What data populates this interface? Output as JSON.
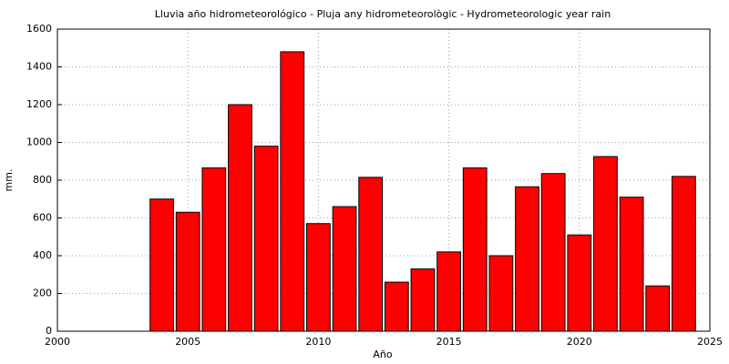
{
  "chart_data": {
    "type": "bar",
    "title": "Lluvia año hidrometeorológico - Pluja any hidrometeorològic - Hydrometeorologic year rain",
    "x_label": "Año",
    "y_label": "mm.",
    "x": [
      2004,
      2005,
      2006,
      2007,
      2008,
      2009,
      2010,
      2011,
      2012,
      2013,
      2014,
      2015,
      2016,
      2017,
      2018,
      2019,
      2020,
      2021,
      2022,
      2023,
      2024
    ],
    "values": [
      700,
      630,
      865,
      1200,
      980,
      1480,
      570,
      660,
      815,
      260,
      330,
      420,
      865,
      400,
      765,
      835,
      510,
      925,
      710,
      240,
      820
    ],
    "color": "#ff0000",
    "xlim": [
      2000,
      2025
    ],
    "xticks": [
      2000,
      2005,
      2010,
      2015,
      2020,
      2025
    ],
    "ylim": [
      0,
      1600
    ],
    "yticks": [
      0,
      200,
      400,
      600,
      800,
      1000,
      1200,
      1400,
      1600
    ],
    "grid": true
  }
}
